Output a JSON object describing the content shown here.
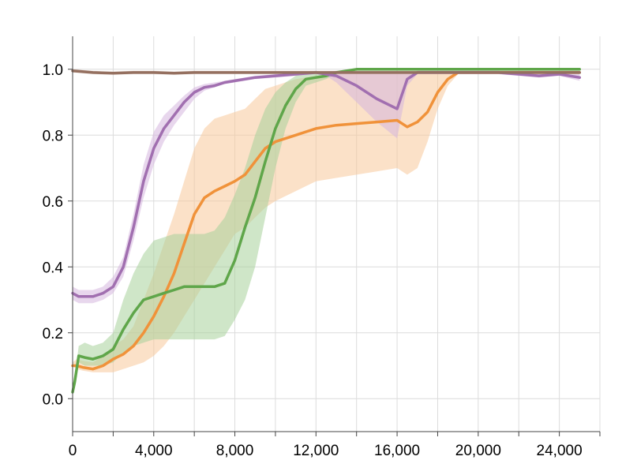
{
  "chart_data": {
    "type": "line",
    "title": "",
    "xlabel": "",
    "ylabel": "",
    "xlim": [
      0,
      26000
    ],
    "ylim": [
      -0.1,
      1.1
    ],
    "grid": true,
    "legend": "none",
    "x_ticks": [
      {
        "value": 0,
        "label": "0"
      },
      {
        "value": 4000,
        "label": "4,000"
      },
      {
        "value": 8000,
        "label": "8,000"
      },
      {
        "value": 12000,
        "label": "12,000"
      },
      {
        "value": 16000,
        "label": "16,000"
      },
      {
        "value": 20000,
        "label": "20,000"
      },
      {
        "value": 24000,
        "label": "24,000"
      }
    ],
    "x_minor_ticks": [
      2000,
      6000,
      10000,
      14000,
      18000,
      22000,
      26000
    ],
    "y_ticks": [
      {
        "value": 0.0,
        "label": "0.0"
      },
      {
        "value": 0.2,
        "label": "0.2"
      },
      {
        "value": 0.4,
        "label": "0.4"
      },
      {
        "value": 0.6,
        "label": "0.6"
      },
      {
        "value": 0.8,
        "label": "0.8"
      },
      {
        "value": 1.0,
        "label": "1.0"
      }
    ],
    "series": [
      {
        "color": "#f0923a",
        "band_color": "#f8c99a",
        "x": [
          0,
          200,
          500,
          1000,
          1500,
          2000,
          2500,
          3000,
          3500,
          4000,
          4500,
          5000,
          5500,
          6000,
          6500,
          7000,
          7500,
          8000,
          8500,
          9000,
          9500,
          10000,
          11000,
          12000,
          13000,
          14000,
          15000,
          16000,
          16500,
          17000,
          17500,
          18000,
          18500,
          19000,
          19500,
          20000,
          21000,
          22000,
          23000,
          24000,
          25000
        ],
        "values": [
          0.1,
          0.1,
          0.095,
          0.09,
          0.1,
          0.12,
          0.135,
          0.16,
          0.2,
          0.25,
          0.31,
          0.38,
          0.47,
          0.56,
          0.61,
          0.63,
          0.645,
          0.66,
          0.68,
          0.72,
          0.76,
          0.78,
          0.8,
          0.82,
          0.83,
          0.835,
          0.84,
          0.845,
          0.825,
          0.84,
          0.87,
          0.93,
          0.97,
          0.99,
          0.99,
          0.99,
          0.99,
          0.99,
          0.99,
          0.99,
          0.99
        ],
        "lower": [
          0.1,
          0.09,
          0.085,
          0.08,
          0.08,
          0.08,
          0.09,
          0.1,
          0.11,
          0.13,
          0.16,
          0.2,
          0.25,
          0.3,
          0.35,
          0.4,
          0.45,
          0.5,
          0.52,
          0.55,
          0.58,
          0.6,
          0.63,
          0.66,
          0.67,
          0.68,
          0.69,
          0.7,
          0.68,
          0.7,
          0.78,
          0.88,
          0.95,
          0.985,
          0.99,
          0.99,
          0.99,
          0.99,
          0.99,
          0.99,
          0.99
        ],
        "upper": [
          0.11,
          0.12,
          0.115,
          0.11,
          0.13,
          0.16,
          0.18,
          0.22,
          0.3,
          0.38,
          0.47,
          0.56,
          0.66,
          0.76,
          0.82,
          0.85,
          0.86,
          0.87,
          0.88,
          0.91,
          0.94,
          0.95,
          0.97,
          0.98,
          0.985,
          0.99,
          0.99,
          0.99,
          0.99,
          0.99,
          0.99,
          0.99,
          0.99,
          0.99,
          0.99,
          0.99,
          0.99,
          0.99,
          0.99,
          0.99,
          0.99
        ]
      },
      {
        "color": "#5fa64a",
        "band_color": "#a8d29a",
        "x": [
          0,
          100,
          300,
          600,
          1000,
          1500,
          2000,
          2500,
          3000,
          3500,
          4000,
          4500,
          5000,
          5500,
          6000,
          6500,
          7000,
          7500,
          8000,
          8500,
          9000,
          9500,
          10000,
          10500,
          11000,
          11500,
          12000,
          12500,
          13000,
          14000,
          15000,
          16000,
          18000,
          20000,
          22000,
          25000
        ],
        "values": [
          0.02,
          0.05,
          0.13,
          0.125,
          0.12,
          0.13,
          0.15,
          0.21,
          0.26,
          0.3,
          0.31,
          0.32,
          0.33,
          0.34,
          0.34,
          0.34,
          0.34,
          0.35,
          0.42,
          0.52,
          0.61,
          0.72,
          0.82,
          0.89,
          0.94,
          0.97,
          0.975,
          0.98,
          0.99,
          1.0,
          1.0,
          1.0,
          1.0,
          1.0,
          1.0,
          1.0
        ],
        "lower": [
          0.02,
          0.04,
          0.11,
          0.1,
          0.1,
          0.1,
          0.11,
          0.14,
          0.16,
          0.17,
          0.18,
          0.18,
          0.18,
          0.18,
          0.18,
          0.18,
          0.18,
          0.19,
          0.24,
          0.3,
          0.4,
          0.55,
          0.7,
          0.82,
          0.9,
          0.95,
          0.96,
          0.97,
          0.985,
          1.0,
          1.0,
          1.0,
          1.0,
          1.0,
          1.0,
          1.0
        ],
        "upper": [
          0.02,
          0.06,
          0.16,
          0.17,
          0.16,
          0.17,
          0.2,
          0.3,
          0.38,
          0.44,
          0.48,
          0.49,
          0.5,
          0.5,
          0.5,
          0.5,
          0.51,
          0.55,
          0.62,
          0.7,
          0.8,
          0.88,
          0.93,
          0.96,
          0.98,
          0.99,
          0.99,
          0.99,
          0.995,
          1.0,
          1.0,
          1.0,
          1.0,
          1.0,
          1.0,
          1.0
        ]
      },
      {
        "color": "#a16fb0",
        "band_color": "#d5b6de",
        "x": [
          0,
          300,
          600,
          1000,
          1500,
          2000,
          2500,
          3000,
          3500,
          4000,
          4500,
          5000,
          5500,
          6000,
          6500,
          7000,
          7500,
          8000,
          9000,
          10000,
          11000,
          12000,
          12500,
          13000,
          14000,
          15000,
          16000,
          16500,
          17000,
          18000,
          19000,
          20000,
          21000,
          22000,
          23000,
          24000,
          25000
        ],
        "values": [
          0.32,
          0.31,
          0.31,
          0.31,
          0.32,
          0.34,
          0.4,
          0.52,
          0.66,
          0.76,
          0.82,
          0.86,
          0.9,
          0.93,
          0.945,
          0.95,
          0.96,
          0.965,
          0.975,
          0.98,
          0.985,
          0.99,
          0.985,
          0.98,
          0.95,
          0.91,
          0.88,
          0.97,
          0.99,
          0.99,
          0.99,
          0.99,
          0.99,
          0.985,
          0.98,
          0.985,
          0.975
        ],
        "lower": [
          0.3,
          0.29,
          0.29,
          0.29,
          0.3,
          0.32,
          0.37,
          0.48,
          0.61,
          0.71,
          0.78,
          0.83,
          0.87,
          0.91,
          0.935,
          0.945,
          0.955,
          0.96,
          0.97,
          0.975,
          0.98,
          0.985,
          0.98,
          0.96,
          0.9,
          0.84,
          0.79,
          0.95,
          0.985,
          0.985,
          0.985,
          0.985,
          0.985,
          0.98,
          0.975,
          0.98,
          0.965
        ],
        "upper": [
          0.34,
          0.33,
          0.33,
          0.33,
          0.34,
          0.37,
          0.43,
          0.56,
          0.71,
          0.81,
          0.86,
          0.89,
          0.92,
          0.945,
          0.955,
          0.96,
          0.965,
          0.97,
          0.98,
          0.985,
          0.99,
          0.995,
          0.99,
          0.99,
          0.99,
          0.99,
          0.99,
          0.99,
          0.995,
          0.995,
          0.995,
          0.995,
          0.995,
          0.99,
          0.99,
          0.99,
          0.985
        ]
      },
      {
        "color": "#957060",
        "band_color": "#d8c2b8",
        "x": [
          0,
          1000,
          2000,
          3000,
          4000,
          5000,
          6000,
          7000,
          8000,
          9000,
          10000,
          11000,
          12000,
          14000,
          16000,
          18000,
          20000,
          22000,
          24000,
          25000
        ],
        "values": [
          0.995,
          0.99,
          0.988,
          0.99,
          0.99,
          0.988,
          0.99,
          0.99,
          0.99,
          0.99,
          0.99,
          0.99,
          0.99,
          0.99,
          0.99,
          0.99,
          0.99,
          0.99,
          0.99,
          0.99
        ],
        "lower": [
          0.99,
          0.985,
          0.983,
          0.985,
          0.985,
          0.983,
          0.985,
          0.985,
          0.985,
          0.985,
          0.985,
          0.985,
          0.985,
          0.985,
          0.985,
          0.985,
          0.985,
          0.985,
          0.985,
          0.985
        ],
        "upper": [
          1.0,
          0.995,
          0.993,
          0.995,
          0.995,
          0.993,
          0.995,
          0.995,
          0.995,
          0.995,
          0.995,
          0.995,
          0.995,
          0.995,
          0.995,
          0.995,
          0.995,
          0.995,
          0.995,
          0.995
        ]
      }
    ]
  }
}
